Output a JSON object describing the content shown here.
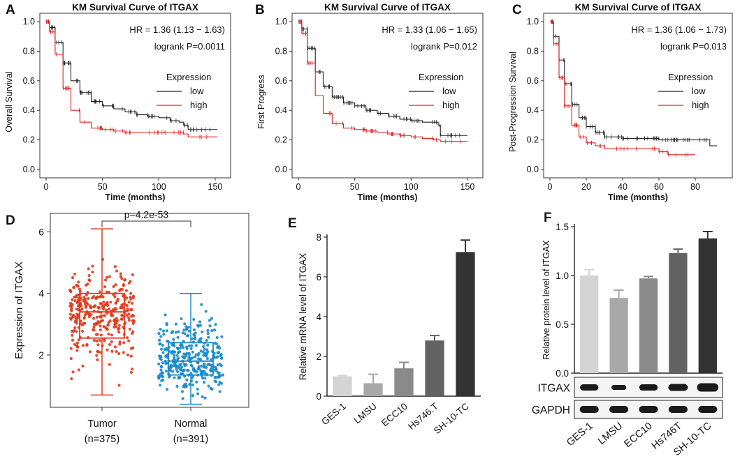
{
  "chart_data": [
    {
      "panel": "A",
      "type": "line",
      "title": "KM Survival Curve of ITGAX",
      "xlabel": "Time (months)",
      "ylabel": "Overall Survival",
      "xticks": [
        "0",
        "50",
        "100",
        "150"
      ],
      "yticks": [
        "0.0",
        "0.2",
        "0.4",
        "0.6",
        "0.8",
        "1.0"
      ],
      "xlim": [
        0,
        155
      ],
      "ylim": [
        0,
        1
      ],
      "hr_text": "HR = 1.36 (1.13 − 1.63)",
      "p_text": "logrank P=0.0011",
      "legend_title": "Expression",
      "legend_loc": "right",
      "series": [
        {
          "name": "low",
          "color": "#222222",
          "x": [
            0,
            3,
            8,
            15,
            22,
            30,
            40,
            50,
            60,
            70,
            80,
            90,
            100,
            110,
            118,
            122,
            126,
            140,
            152
          ],
          "y": [
            1,
            0.96,
            0.86,
            0.72,
            0.6,
            0.52,
            0.46,
            0.43,
            0.41,
            0.39,
            0.37,
            0.36,
            0.35,
            0.33,
            0.32,
            0.3,
            0.27,
            0.27,
            0.27
          ]
        },
        {
          "name": "high",
          "color": "#e02020",
          "x": [
            0,
            3,
            8,
            15,
            22,
            30,
            40,
            50,
            60,
            70,
            80,
            90,
            100,
            110,
            118,
            122,
            126,
            140,
            152
          ],
          "y": [
            1,
            0.93,
            0.78,
            0.55,
            0.4,
            0.32,
            0.28,
            0.27,
            0.26,
            0.25,
            0.25,
            0.25,
            0.25,
            0.25,
            0.25,
            0.24,
            0.22,
            0.22,
            0.22
          ]
        }
      ]
    },
    {
      "panel": "B",
      "type": "line",
      "title": "KM Survival Curve of ITGAX",
      "xlabel": "Time (months)",
      "ylabel": "First Progress",
      "xticks": [
        "0",
        "50",
        "100",
        "150"
      ],
      "yticks": [
        "0.0",
        "0.2",
        "0.4",
        "0.6",
        "0.8",
        "1.0"
      ],
      "xlim": [
        0,
        155
      ],
      "ylim": [
        0,
        1
      ],
      "hr_text": "HR = 1.33 (1.06 − 1.65)",
      "p_text": "logrank P=0.012",
      "legend_title": "Expression",
      "legend_loc": "right",
      "series": [
        {
          "name": "low",
          "color": "#222222",
          "x": [
            0,
            3,
            8,
            15,
            22,
            30,
            40,
            50,
            60,
            70,
            80,
            90,
            100,
            110,
            120,
            124,
            126,
            140,
            150
          ],
          "y": [
            1,
            0.95,
            0.82,
            0.66,
            0.56,
            0.49,
            0.45,
            0.43,
            0.4,
            0.38,
            0.36,
            0.34,
            0.33,
            0.32,
            0.32,
            0.3,
            0.23,
            0.23,
            0.23
          ]
        },
        {
          "name": "high",
          "color": "#e02020",
          "x": [
            0,
            3,
            8,
            15,
            22,
            30,
            40,
            50,
            60,
            70,
            80,
            90,
            100,
            110,
            120,
            124,
            126,
            140,
            150
          ],
          "y": [
            1,
            0.92,
            0.72,
            0.5,
            0.38,
            0.31,
            0.28,
            0.27,
            0.26,
            0.25,
            0.24,
            0.23,
            0.22,
            0.21,
            0.2,
            0.2,
            0.19,
            0.19,
            0.19
          ]
        }
      ]
    },
    {
      "panel": "C",
      "type": "line",
      "title": "KM Survival Curve of ITGAX",
      "xlabel": "Time (months)",
      "ylabel": "Post-Progression Survival",
      "xticks": [
        "0",
        "20",
        "40",
        "60",
        "80"
      ],
      "yticks": [
        "0.0",
        "0.2",
        "0.4",
        "0.6",
        "0.8",
        "1.0"
      ],
      "xlim": [
        0,
        95
      ],
      "ylim": [
        0,
        1
      ],
      "hr_text": "HR = 1.36 (1.06 − 1.73)",
      "p_text": "logrank P=0.013",
      "legend_title": "Expression",
      "legend_loc": "right",
      "series": [
        {
          "name": "low",
          "color": "#222222",
          "x": [
            0,
            2,
            5,
            8,
            12,
            16,
            20,
            25,
            30,
            40,
            50,
            60,
            70,
            80,
            85,
            88,
            92
          ],
          "y": [
            1,
            0.9,
            0.74,
            0.58,
            0.44,
            0.35,
            0.29,
            0.25,
            0.22,
            0.21,
            0.21,
            0.2,
            0.2,
            0.2,
            0.2,
            0.16,
            0.16
          ]
        },
        {
          "name": "high",
          "color": "#e02020",
          "x": [
            0,
            2,
            5,
            8,
            12,
            16,
            20,
            25,
            30,
            40,
            50,
            60,
            65,
            70,
            80
          ],
          "y": [
            1,
            0.85,
            0.62,
            0.43,
            0.3,
            0.22,
            0.18,
            0.16,
            0.14,
            0.14,
            0.14,
            0.12,
            0.1,
            0.1,
            0.1
          ]
        }
      ]
    },
    {
      "panel": "D",
      "type": "box",
      "xlabel": "",
      "ylabel": "Expression of ITGAX",
      "yticks": [
        "2",
        "4",
        "6"
      ],
      "ylim": [
        0.3,
        6.6
      ],
      "pvalue_text": "p=4.2e-53",
      "groups": [
        {
          "name": "Tumor",
          "n_text": "(n=375)",
          "color": "#e03a1c",
          "min": 0.7,
          "q1": 2.55,
          "median": 3.4,
          "q3": 4.0,
          "max": 6.1
        },
        {
          "name": "Normal",
          "n_text": "(n=391)",
          "color": "#1a8ac8",
          "min": 0.4,
          "q1": 1.35,
          "median": 1.8,
          "q3": 2.4,
          "max": 4.0
        }
      ]
    },
    {
      "panel": "E",
      "type": "bar",
      "ylabel": "Relative mRNA level of ITGAX",
      "categories": [
        "GES-1",
        "LMSU",
        "ECC10",
        "Hs746.T",
        "SH-10-TC"
      ],
      "values": [
        1.0,
        0.65,
        1.4,
        2.8,
        7.25
      ],
      "errors": [
        0.04,
        0.45,
        0.3,
        0.25,
        0.6
      ],
      "colors": [
        "#d4d4d4",
        "#a8a8a8",
        "#8a8a8a",
        "#636363",
        "#333333"
      ],
      "yticks": [
        "0",
        "2",
        "4",
        "6",
        "8"
      ],
      "ylim": [
        0,
        8
      ]
    },
    {
      "panel": "F",
      "type": "bar",
      "ylabel": "Relative protein level of ITGAX",
      "categories": [
        "GES-1",
        "LMSU",
        "ECC10",
        "Hs746T",
        "SH-10-TC"
      ],
      "values": [
        1.0,
        0.77,
        0.97,
        1.23,
        1.38
      ],
      "errors": [
        0.06,
        0.08,
        0.02,
        0.04,
        0.07
      ],
      "colors": [
        "#d4d4d4",
        "#a8a8a8",
        "#8a8a8a",
        "#636363",
        "#333333"
      ],
      "yticks": [
        "0.0",
        "0.5",
        "1.0",
        "1.5"
      ],
      "ylim": [
        0,
        1.5
      ],
      "blot_labels": [
        "ITGAX",
        "GAPDH"
      ]
    }
  ]
}
